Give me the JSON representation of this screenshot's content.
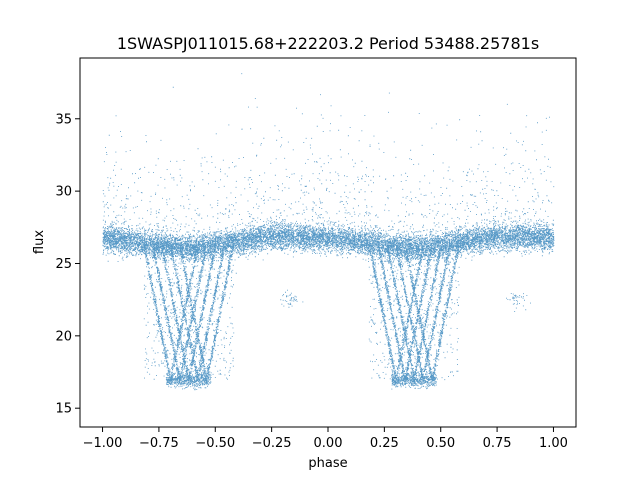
{
  "chart_data": {
    "type": "scatter",
    "title": "1SWASPJ011015.68+222203.2 Period 53488.25781s",
    "xlabel": "phase",
    "ylabel": "flux",
    "xlim": [
      -1.1,
      1.1
    ],
    "ylim": [
      13.7,
      39.2
    ],
    "xticks": [
      -1.0,
      -0.75,
      -0.5,
      -0.25,
      0.0,
      0.25,
      0.5,
      0.75,
      1.0
    ],
    "xtick_labels": [
      "−1.00",
      "−0.75",
      "−0.50",
      "−0.25",
      "0.00",
      "0.25",
      "0.50",
      "0.75",
      "1.00"
    ],
    "yticks": [
      15,
      20,
      25,
      30,
      35
    ],
    "ytick_labels": [
      "15",
      "20",
      "25",
      "30",
      "35"
    ],
    "grid": false,
    "color": "#1f77b4",
    "series": [
      {
        "baseline": {
          "description_points": [
            {
              "x": -1.0,
              "y": 26.8
            },
            {
              "x": -0.75,
              "y": 26.3
            },
            {
              "x": -0.6,
              "y": 26.1
            },
            {
              "x": -0.5,
              "y": 26.3
            },
            {
              "x": -0.25,
              "y": 26.9
            },
            {
              "x": -0.1,
              "y": 26.8
            },
            {
              "x": 0.0,
              "y": 26.8
            },
            {
              "x": 0.25,
              "y": 26.3
            },
            {
              "x": 0.4,
              "y": 26.1
            },
            {
              "x": 0.5,
              "y": 26.3
            },
            {
              "x": 0.75,
              "y": 26.9
            },
            {
              "x": 1.0,
              "y": 26.8
            }
          ]
        },
        "dips": [
          {
            "center": -0.62,
            "min_flux": 17.0,
            "halfwidth": 0.17
          },
          {
            "center": 0.38,
            "min_flux": 17.0,
            "halfwidth": 0.17
          }
        ]
      }
    ]
  }
}
